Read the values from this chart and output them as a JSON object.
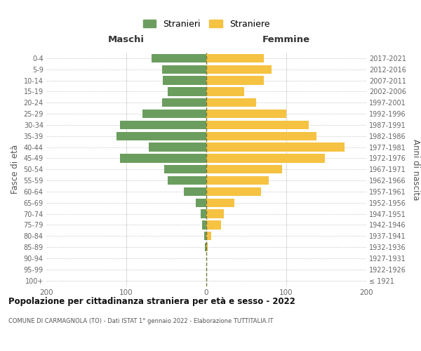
{
  "age_groups": [
    "100+",
    "95-99",
    "90-94",
    "85-89",
    "80-84",
    "75-79",
    "70-74",
    "65-69",
    "60-64",
    "55-59",
    "50-54",
    "45-49",
    "40-44",
    "35-39",
    "30-34",
    "25-29",
    "20-24",
    "15-19",
    "10-14",
    "5-9",
    "0-4"
  ],
  "birth_years": [
    "≤ 1921",
    "1922-1926",
    "1927-1931",
    "1932-1936",
    "1937-1941",
    "1942-1946",
    "1947-1951",
    "1952-1956",
    "1957-1961",
    "1962-1966",
    "1967-1971",
    "1972-1976",
    "1977-1981",
    "1982-1986",
    "1987-1991",
    "1992-1996",
    "1997-2001",
    "2002-2006",
    "2007-2011",
    "2012-2016",
    "2017-2021"
  ],
  "maschi": [
    0,
    0,
    0,
    2,
    3,
    5,
    7,
    13,
    28,
    48,
    53,
    108,
    72,
    112,
    108,
    80,
    55,
    48,
    54,
    55,
    68
  ],
  "femmine": [
    0,
    0,
    0,
    2,
    6,
    18,
    22,
    35,
    68,
    78,
    95,
    148,
    173,
    138,
    128,
    100,
    62,
    47,
    72,
    82,
    72
  ],
  "color_maschi": "#6b9e5e",
  "color_femmine": "#f5c242",
  "color_dashed": "#7a7a40",
  "xlim": 200,
  "title": "Popolazione per cittadinanza straniera per età e sesso - 2022",
  "subtitle": "COMUNE DI CARMAGNOLA (TO) - Dati ISTAT 1° gennaio 2022 - Elaborazione TUTTITALIA.IT",
  "ylabel_left": "Fasce di età",
  "ylabel_right": "Anni di nascita",
  "legend_maschi": "Stranieri",
  "legend_femmine": "Straniere",
  "header_left": "Maschi",
  "header_right": "Femmine",
  "bg_color": "#ffffff",
  "grid_color": "#cccccc"
}
